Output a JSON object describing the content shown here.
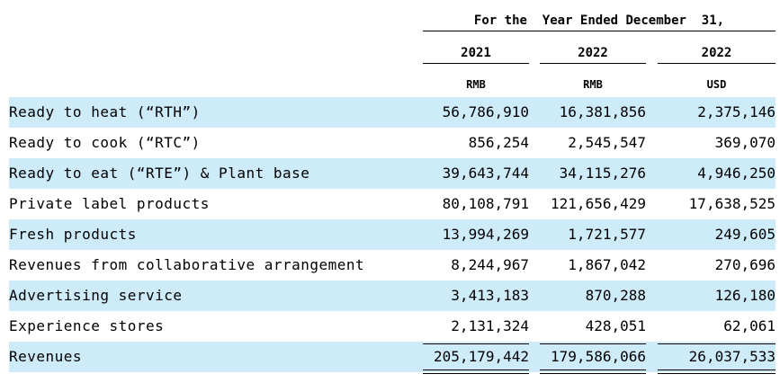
{
  "header": {
    "period": "For the  Year Ended December  31,",
    "years": [
      "2021",
      "2022",
      "2022"
    ],
    "currencies": [
      "RMB",
      "RMB",
      "USD"
    ]
  },
  "rows": [
    {
      "label": "Ready to heat (“RTH”)",
      "v2021": "56,786,910",
      "v2022_rmb": "16,381,856",
      "v2022_usd": "2,375,146"
    },
    {
      "label": "Ready to cook (“RTC”)",
      "v2021": "856,254",
      "v2022_rmb": "2,545,547",
      "v2022_usd": "369,070"
    },
    {
      "label": "Ready to eat (“RTE”) & Plant base",
      "v2021": "39,643,744",
      "v2022_rmb": "34,115,276",
      "v2022_usd": "4,946,250"
    },
    {
      "label": "Private label products",
      "v2021": "80,108,791",
      "v2022_rmb": "121,656,429",
      "v2022_usd": "17,638,525"
    },
    {
      "label": "Fresh products",
      "v2021": "13,994,269",
      "v2022_rmb": "1,721,577",
      "v2022_usd": "249,605"
    },
    {
      "label": "Revenues from collaborative arrangement",
      "v2021": "8,244,967",
      "v2022_rmb": "1,867,042",
      "v2022_usd": "270,696"
    },
    {
      "label": "Advertising service",
      "v2021": "3,413,183",
      "v2022_rmb": "870,288",
      "v2022_usd": "126,180"
    },
    {
      "label": "Experience stores",
      "v2021": "2,131,324",
      "v2022_rmb": "428,051",
      "v2022_usd": "62,061"
    }
  ],
  "total": {
    "label": "Revenues",
    "v2021": "205,179,442",
    "v2022_rmb": "179,586,066",
    "v2022_usd": "26,037,533"
  }
}
